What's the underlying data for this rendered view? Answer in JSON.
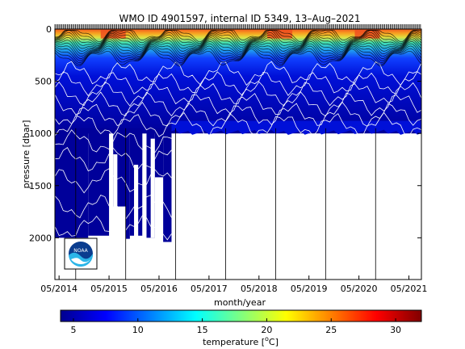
{
  "chart_data": {
    "type": "heatmap",
    "title": "WMO ID 4901597, internal ID 5349, 13–Aug–2021",
    "xlabel": "month/year",
    "ylabel": "pressure [dbar]",
    "x_tick_labels": [
      "05/2014",
      "05/2015",
      "05/2016",
      "05/2017",
      "05/2018",
      "05/2019",
      "05/2020",
      "05/2021"
    ],
    "x_start": "2014-04",
    "x_end": "2021-08",
    "y_ticks": [
      0,
      500,
      1000,
      1500,
      2000
    ],
    "ylim": [
      2400,
      0
    ],
    "y_reversed": true,
    "colorbar": {
      "label": "temperature [°C]",
      "label_prefix": "temperature [",
      "label_unit_symbol": "o",
      "label_unit_letter": "C",
      "label_suffix": "]",
      "ticks": [
        5,
        10,
        15,
        20,
        25,
        30
      ],
      "range": [
        4,
        32
      ],
      "colormap": "jet"
    },
    "layers": [
      {
        "temp_min": 27,
        "temp_max": 30,
        "depth_to": 40
      },
      {
        "temp_min": 20,
        "temp_max": 26,
        "depth_to": 150
      },
      {
        "temp_min": 12,
        "temp_max": 18,
        "depth_to": 320
      },
      {
        "temp_min": 8,
        "temp_max": 11,
        "depth_to": 550
      },
      {
        "temp_min": 5,
        "temp_max": 7,
        "depth_to": 1000
      },
      {
        "temp_min": 4,
        "temp_max": 5,
        "depth_to": 2050
      }
    ],
    "profile_max_depth": {
      "2014-05_to_2015-05": 2000,
      "2015-05_to_2016-08": "mixed 1000–2050",
      "2016-08_to_2021-08": 1000
    },
    "grid": false
  },
  "logo": {
    "text": "NOAA",
    "name": "noaa-logo"
  }
}
